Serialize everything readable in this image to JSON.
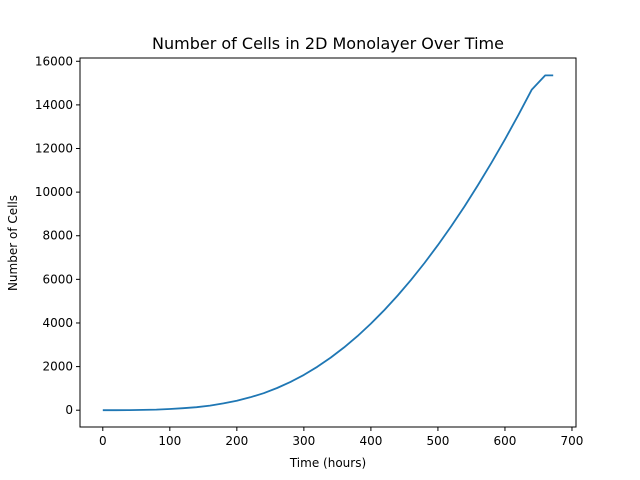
{
  "chart_data": {
    "type": "line",
    "title": "Number of Cells in 2D Monolayer Over Time",
    "xlabel": "Time (hours)",
    "ylabel": "Number of Cells",
    "xlim": [
      -34,
      706
    ],
    "ylim": [
      -770,
      16150
    ],
    "xticks": [
      0,
      100,
      200,
      300,
      400,
      500,
      600,
      700
    ],
    "yticks": [
      0,
      2000,
      4000,
      6000,
      8000,
      10000,
      12000,
      14000,
      16000
    ],
    "grid": false,
    "line_color": "#1f77b4",
    "series": [
      {
        "name": "cells",
        "x": [
          0,
          20,
          40,
          60,
          80,
          100,
          120,
          140,
          160,
          180,
          200,
          220,
          240,
          260,
          280,
          300,
          320,
          340,
          360,
          380,
          400,
          420,
          440,
          460,
          480,
          500,
          520,
          540,
          560,
          580,
          600,
          620,
          640,
          660,
          672
        ],
        "y": [
          0,
          1,
          4,
          12,
          28,
          55,
          90,
          140,
          210,
          310,
          430,
          590,
          780,
          1020,
          1300,
          1620,
          1990,
          2410,
          2880,
          3400,
          3970,
          4590,
          5260,
          5980,
          6750,
          7570,
          8440,
          9360,
          10330,
          11350,
          12420,
          13540,
          14700,
          15350,
          15350
        ]
      }
    ]
  }
}
